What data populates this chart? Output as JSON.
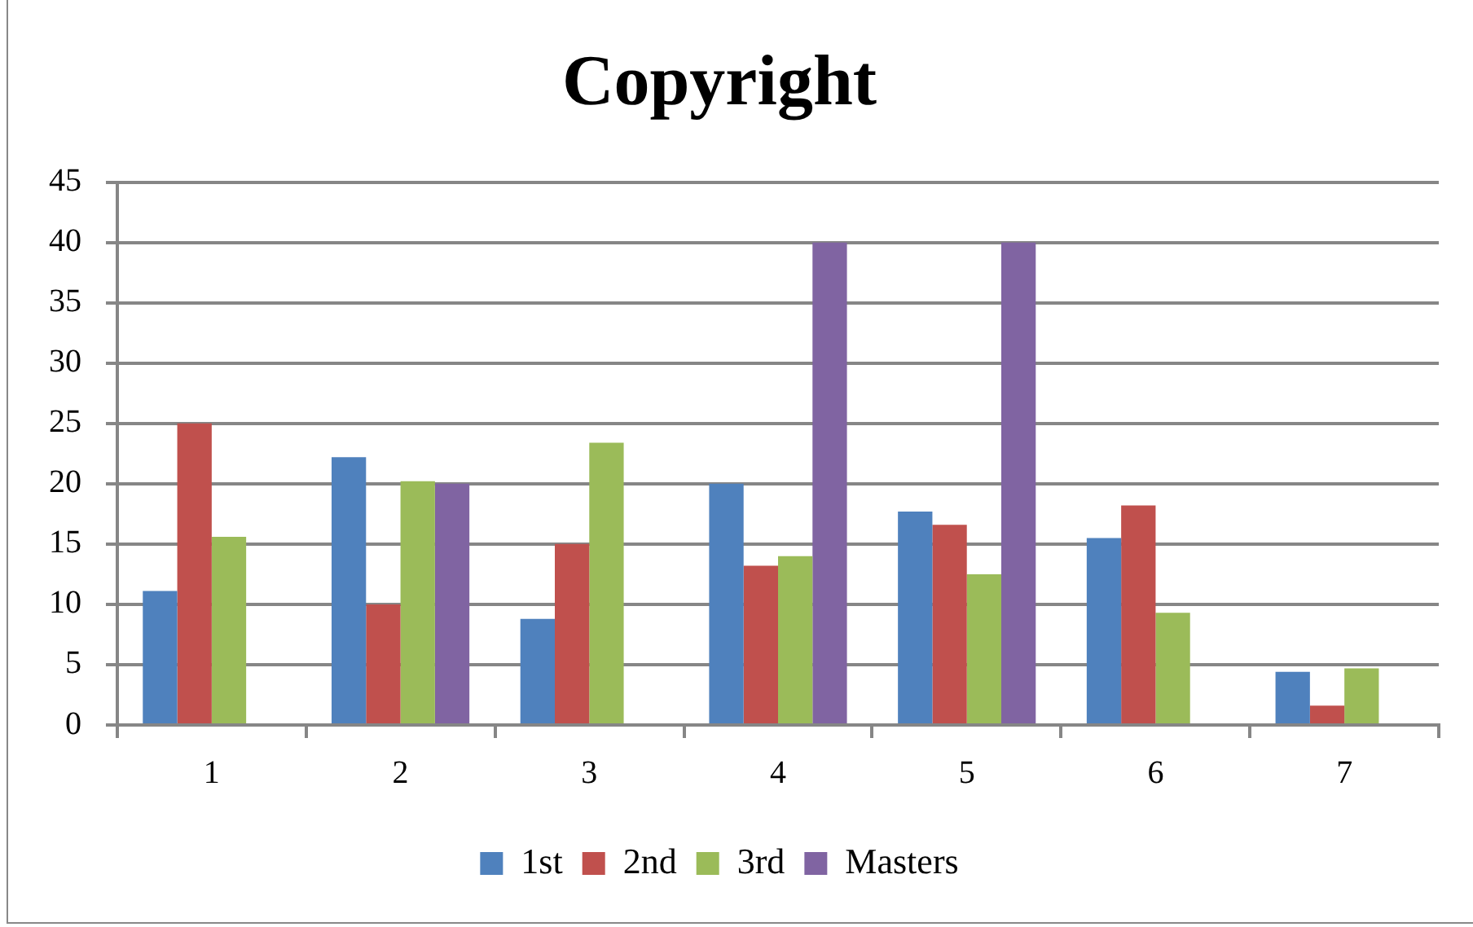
{
  "chart_data": {
    "type": "bar",
    "title": "Copyright",
    "categories": [
      "1",
      "2",
      "3",
      "4",
      "5",
      "6",
      "7"
    ],
    "series": [
      {
        "name": "1st",
        "color": "#4f81bd",
        "values": [
          11.1,
          22.2,
          8.8,
          20,
          17.7,
          15.5,
          4.4
        ]
      },
      {
        "name": "2nd",
        "color": "#c0504d",
        "values": [
          25,
          10,
          15,
          13.2,
          16.6,
          18.2,
          1.6
        ]
      },
      {
        "name": "3rd",
        "color": "#9bbb59",
        "values": [
          15.6,
          20.2,
          23.4,
          14,
          12.5,
          9.3,
          4.7
        ]
      },
      {
        "name": "Masters",
        "color": "#8064a2",
        "values": [
          null,
          20,
          null,
          40,
          40,
          null,
          null
        ]
      }
    ],
    "ylim": [
      0,
      45
    ],
    "yticks": [
      0,
      5,
      10,
      15,
      20,
      25,
      30,
      35,
      40,
      45
    ],
    "grid": "y",
    "legend": "bottom"
  }
}
